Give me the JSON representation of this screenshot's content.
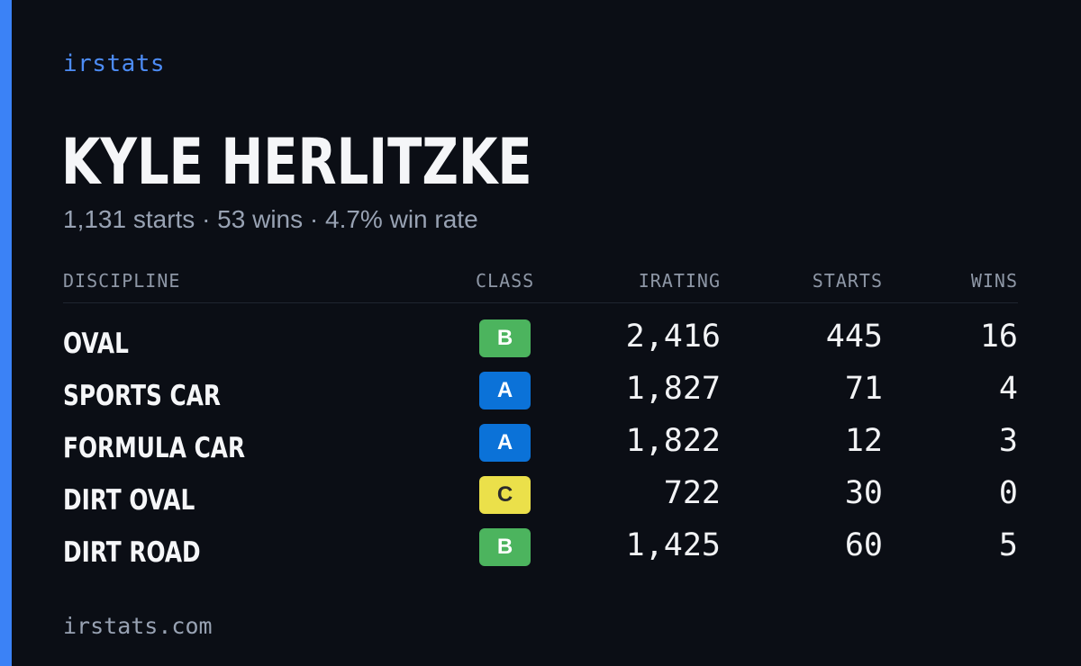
{
  "brand": "irstats",
  "driver": {
    "name": "KYLE HERLITZKE",
    "summary": "1,131 starts · 53 wins · 4.7% win rate"
  },
  "table": {
    "headers": {
      "discipline": "DISCIPLINE",
      "class": "CLASS",
      "irating": "IRATING",
      "starts": "STARTS",
      "wins": "WINS"
    },
    "rows": [
      {
        "discipline": "OVAL",
        "class": "B",
        "irating": "2,416",
        "starts": "445",
        "wins": "16"
      },
      {
        "discipline": "SPORTS CAR",
        "class": "A",
        "irating": "1,827",
        "starts": "71",
        "wins": "4"
      },
      {
        "discipline": "FORMULA CAR",
        "class": "A",
        "irating": "1,822",
        "starts": "12",
        "wins": "3"
      },
      {
        "discipline": "DIRT OVAL",
        "class": "C",
        "irating": "722",
        "starts": "30",
        "wins": "0"
      },
      {
        "discipline": "DIRT ROAD",
        "class": "B",
        "irating": "1,425",
        "starts": "60",
        "wins": "5"
      }
    ]
  },
  "class_colors": {
    "A": {
      "bg": "#0b72d8",
      "fg": "#ffffff"
    },
    "B": {
      "bg": "#4cb45e",
      "fg": "#ffffff"
    },
    "C": {
      "bg": "#ebe04a",
      "fg": "#2b2b2b"
    }
  },
  "colors": {
    "accent": "#3b82f6",
    "background": "#0b0e15"
  },
  "footer": "irstats.com"
}
